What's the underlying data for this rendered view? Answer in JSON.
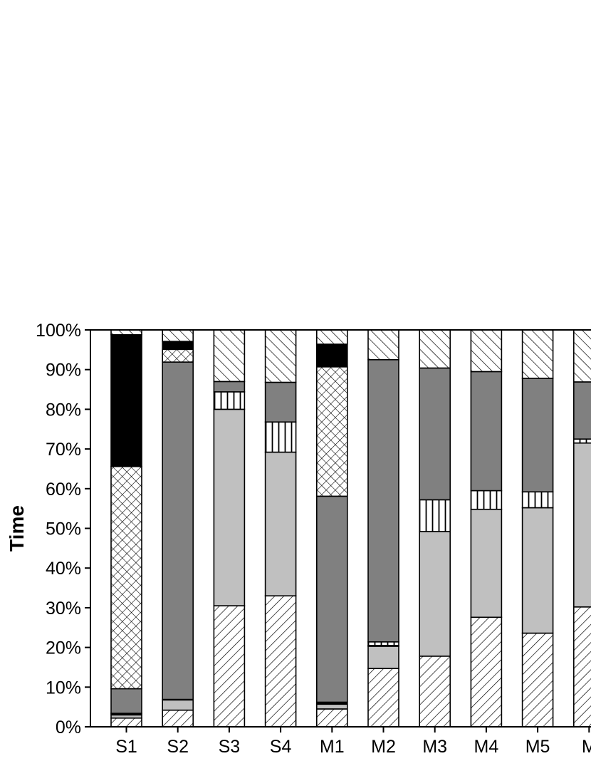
{
  "chart_data": {
    "type": "bar",
    "stacked": true,
    "normalized": true,
    "title": "",
    "xlabel": "",
    "ylabel": "Time",
    "ylim": [
      0,
      100
    ],
    "y_ticks": [
      "0%",
      "10%",
      "20%",
      "30%",
      "40%",
      "50%",
      "60%",
      "70%",
      "80%",
      "90%",
      "100%"
    ],
    "grid": false,
    "legend": "none visible",
    "categories": [
      "S1",
      "S2",
      "S3",
      "S4",
      "M1",
      "M2",
      "M3",
      "M4",
      "M5",
      "M"
    ],
    "series": [
      {
        "pattern": "diag-up-hatch",
        "values": [
          2.2,
          4.2,
          30.5,
          33.0,
          4.5,
          14.7,
          17.8,
          27.6,
          23.6,
          30.2
        ]
      },
      {
        "pattern": "light-gray",
        "values": [
          0.8,
          2.6,
          49.5,
          36.2,
          1.2,
          5.6,
          31.4,
          27.2,
          31.6,
          41.3
        ]
      },
      {
        "pattern": "black-thin",
        "values": [
          0.4,
          0.1,
          0.0,
          0.0,
          0.5,
          0.2,
          0.0,
          0.0,
          0.0,
          0.0
        ]
      },
      {
        "pattern": "vertical-stripes",
        "values": [
          0.0,
          0.0,
          4.4,
          7.6,
          0.0,
          0.9,
          8.0,
          4.7,
          4.0,
          1.0
        ]
      },
      {
        "pattern": "dark-gray",
        "values": [
          6.2,
          85.0,
          2.6,
          10.0,
          51.9,
          71.1,
          33.2,
          30.0,
          28.6,
          14.4
        ]
      },
      {
        "pattern": "crosshatch",
        "values": [
          56.0,
          3.2,
          0.0,
          0.0,
          32.6,
          0.0,
          0.0,
          0.0,
          0.0,
          0.0
        ]
      },
      {
        "pattern": "black",
        "values": [
          33.2,
          2.0,
          0.0,
          0.0,
          5.7,
          0.0,
          0.0,
          0.0,
          0.0,
          0.0
        ]
      },
      {
        "pattern": "diag-down-hatch",
        "values": [
          1.2,
          2.9,
          13.0,
          13.2,
          3.6,
          7.5,
          9.6,
          10.5,
          12.2,
          13.1
        ]
      }
    ],
    "colors": {
      "light_gray": "#c0c0c0",
      "dark_gray": "#808080",
      "black": "#000000",
      "hatch_line": "#000000",
      "background": "#ffffff"
    }
  }
}
